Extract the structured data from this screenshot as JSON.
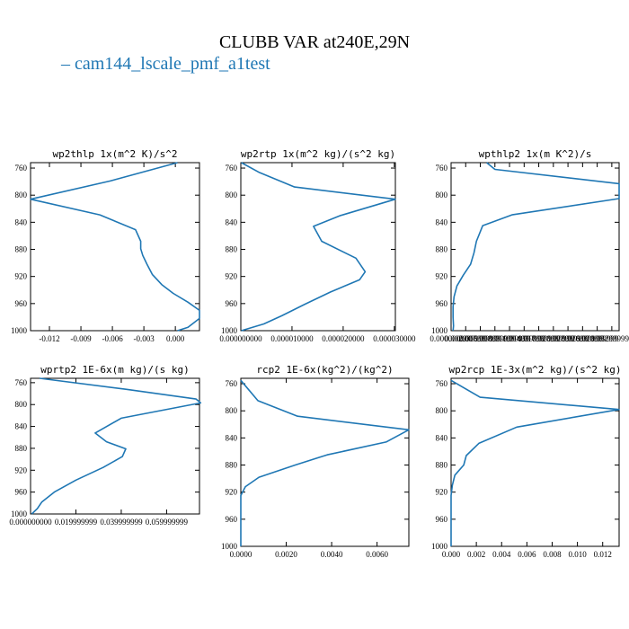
{
  "title": "CLUBB VAR at240E,29N",
  "legend": {
    "label": "cam144_lscale_pmf_a1test",
    "color": "#1f77b4"
  },
  "chart_data": [
    {
      "type": "line",
      "title": "wp2thlp  1x(m^2 K)/s^2",
      "xlim": [
        -0.0138,
        0.0023
      ],
      "ylim": [
        1000,
        752
      ],
      "x_ticks": [
        "-0.012",
        "-0.009",
        "-0.006",
        "-0.003",
        "0.000"
      ],
      "x_tick_values": [
        -0.012,
        -0.009,
        -0.006,
        -0.003,
        0.0
      ],
      "y_ticks": [
        "760",
        "800",
        "840",
        "880",
        "920",
        "960",
        "1000"
      ],
      "y_tick_values": [
        760,
        800,
        840,
        880,
        920,
        960,
        1000
      ],
      "series": [
        {
          "color": "#1f77b4",
          "x": [
            0.0002,
            -0.0062,
            -0.0138,
            -0.0072,
            -0.0038,
            -0.0033,
            -0.0033,
            -0.0031,
            -0.0027,
            -0.0022,
            -0.0013,
            -0.0002,
            0.0012,
            0.0023,
            0.0023,
            0.0012,
            0.0002
          ],
          "y": [
            752,
            779,
            806,
            829,
            851,
            868,
            879,
            889,
            902,
            917,
            932,
            945,
            958,
            970,
            982,
            995,
            1000
          ]
        }
      ]
    },
    {
      "type": "line",
      "title": "wp2rtp  1x(m^2 kg)/(s^2 kg)",
      "xlim": [
        0.0,
        3.02e-05
      ],
      "ylim": [
        1000,
        752
      ],
      "x_ticks": [
        "0.000000000",
        "0.000010000",
        "0.000020000",
        "0.000030000"
      ],
      "x_tick_values": [
        0.0,
        1e-05,
        2e-05,
        3e-05
      ],
      "y_ticks": [
        "760",
        "800",
        "840",
        "880",
        "920",
        "960",
        "1000"
      ],
      "y_tick_values": [
        760,
        800,
        840,
        880,
        920,
        960,
        1000
      ],
      "series": [
        {
          "color": "#1f77b4",
          "x": [
            1e-07,
            3.5e-06,
            1.05e-05,
            3.02e-05,
            1.95e-05,
            1.42e-05,
            1.58e-05,
            2.25e-05,
            2.43e-05,
            2.32e-05,
            1.75e-05,
            1.25e-05,
            8e-06,
            4.5e-06,
            1e-07
          ],
          "y": [
            752,
            766,
            788,
            806,
            830,
            846,
            868,
            893,
            913,
            925,
            943,
            961,
            978,
            990,
            1000
          ]
        }
      ]
    },
    {
      "type": "line",
      "title": "wpthlp2  1x(m K^2)/s",
      "xlim": [
        0.0,
        0.0345
      ],
      "ylim": [
        1000,
        752
      ],
      "x_ticks": [
        "0.000000000",
        "0.002999999",
        "0.005999999",
        "0.008999999",
        "0.011999999",
        "0.014999999",
        "0.017999999",
        "0.020999999",
        "0.023999999",
        "0.026999999",
        "0.029999999",
        "0.032999999"
      ],
      "x_tick_values": [
        0.0,
        0.003,
        0.006,
        0.009,
        0.012,
        0.015,
        0.018,
        0.021,
        0.024,
        0.027,
        0.03,
        0.033
      ],
      "y_ticks": [
        "760",
        "800",
        "840",
        "880",
        "920",
        "960",
        "1000"
      ],
      "y_tick_values": [
        760,
        800,
        840,
        880,
        920,
        960,
        1000
      ],
      "series": [
        {
          "color": "#1f77b4",
          "x": [
            0.0073,
            0.009,
            0.0345,
            0.0345,
            0.0125,
            0.0065,
            0.0052,
            0.0047,
            0.004,
            0.0025,
            0.0012,
            0.0006,
            0.0004,
            0.0004,
            0.0005,
            0.0004
          ],
          "y": [
            752,
            762,
            783,
            805,
            829,
            845,
            868,
            885,
            902,
            918,
            934,
            950,
            965,
            980,
            993,
            1000
          ]
        }
      ]
    },
    {
      "type": "line",
      "title": "wprtp2  1E-6x(m kg)/(s kg)",
      "xlim": [
        0.0,
        0.0745
      ],
      "ylim": [
        1000,
        752
      ],
      "x_ticks": [
        "0.000000000",
        "0.019999999",
        "0.039999999",
        "0.059999999"
      ],
      "x_tick_values": [
        0.0,
        0.02,
        0.04,
        0.06
      ],
      "y_ticks": [
        "760",
        "800",
        "840",
        "880",
        "920",
        "960",
        "1000"
      ],
      "y_tick_values": [
        760,
        800,
        840,
        880,
        920,
        960,
        1000
      ],
      "series": [
        {
          "color": "#1f77b4",
          "x": [
            0.004,
            0.042,
            0.073,
            0.075,
            0.04,
            0.0285,
            0.0335,
            0.042,
            0.0405,
            0.032,
            0.02,
            0.0105,
            0.005,
            0.003,
            0.0005
          ],
          "y": [
            752,
            772,
            790,
            797,
            825,
            852,
            868,
            881,
            895,
            915,
            938,
            960,
            978,
            990,
            1000
          ]
        }
      ]
    },
    {
      "type": "line",
      "title": "rcp2  1E-6x(kg^2)/(kg^2)",
      "xlim": [
        0.0,
        0.0074
      ],
      "ylim": [
        1000,
        752
      ],
      "x_ticks": [
        "0.0000",
        "0.0020",
        "0.0040",
        "0.0060"
      ],
      "x_tick_values": [
        0.0,
        0.002,
        0.004,
        0.006
      ],
      "y_ticks": [
        "760",
        "800",
        "840",
        "880",
        "920",
        "960",
        "1000"
      ],
      "y_tick_values": [
        760,
        800,
        840,
        880,
        920,
        960,
        1000
      ],
      "series": [
        {
          "color": "#1f77b4",
          "x": [
            0.0,
            0.00075,
            0.0025,
            0.0074,
            0.0064,
            0.0038,
            0.0024,
            0.0008,
            0.0002,
            0.0,
            0.0,
            0.0
          ],
          "y": [
            755,
            785,
            808,
            828,
            846,
            865,
            880,
            898,
            912,
            925,
            960,
            1000
          ]
        }
      ]
    },
    {
      "type": "line",
      "title": "wp2rcp  1E-3x(m^2 kg)/(s^2 kg)",
      "xlim": [
        0.0,
        0.0133
      ],
      "ylim": [
        1000,
        752
      ],
      "x_ticks": [
        "0.000",
        "0.002",
        "0.004",
        "0.006",
        "0.008",
        "0.010",
        "0.012"
      ],
      "x_tick_values": [
        0.0,
        0.002,
        0.004,
        0.006,
        0.008,
        0.01,
        0.012
      ],
      "y_ticks": [
        "760",
        "800",
        "840",
        "880",
        "920",
        "960",
        "1000"
      ],
      "y_tick_values": [
        760,
        800,
        840,
        880,
        920,
        960,
        1000
      ],
      "series": [
        {
          "color": "#1f77b4",
          "x": [
            0.0,
            0.0023,
            0.0133,
            0.0052,
            0.0022,
            0.0012,
            0.001,
            0.0003,
            0.0001,
            0.0,
            0.0
          ],
          "y": [
            755,
            780,
            798,
            824,
            848,
            866,
            880,
            895,
            910,
            925,
            1000
          ]
        }
      ]
    }
  ]
}
